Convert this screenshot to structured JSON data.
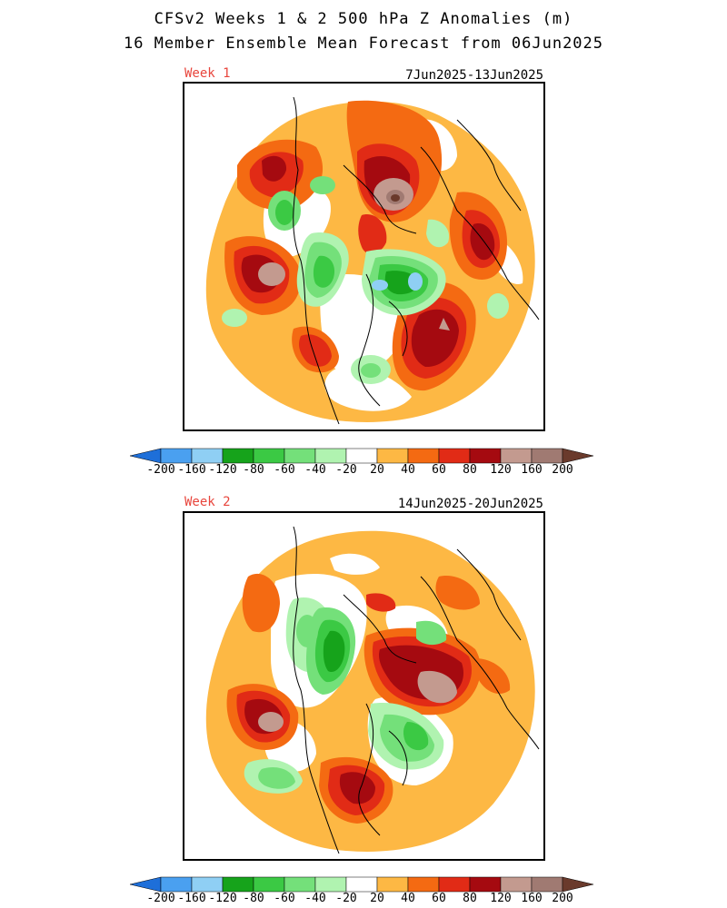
{
  "title_line1": "CFSv2 Weeks 1 & 2 500 hPa Z Anomalies (m)",
  "title_line2": "16 Member Ensemble Mean Forecast from 06Jun2025",
  "panels": [
    {
      "week": "Week 1",
      "dates": "7Jun2025-13Jun2025"
    },
    {
      "week": "Week 2",
      "dates": "14Jun2025-20Jun2025"
    }
  ],
  "colorbar": {
    "labels": [
      "-200",
      "-160",
      "-120",
      "-80",
      "-60",
      "-40",
      "-20",
      "20",
      "40",
      "60",
      "80",
      "120",
      "160",
      "200"
    ],
    "colors": [
      "#1e6fd9",
      "#4aa0f0",
      "#8fcff4",
      "#16a31b",
      "#3bc944",
      "#74e07a",
      "#b0f3b0",
      "#ffffff",
      "#fdb844",
      "#f46a12",
      "#e12b16",
      "#a50a10",
      "#c39a8f",
      "#a07a72",
      "#6a3a2c"
    ]
  },
  "anomaly_colors": {
    "pos20": "#fdb844",
    "pos40": "#f46a12",
    "pos60": "#e12b16",
    "pos80": "#a50a10",
    "pos120": "#c39a8f",
    "pos160": "#a07a72",
    "pos200": "#6a3a2c",
    "neg20": "#b0f3b0",
    "neg40": "#74e07a",
    "neg60": "#3bc944",
    "neg80": "#16a31b",
    "neg120": "#8fcff4",
    "neg160": "#4aa0f0"
  }
}
